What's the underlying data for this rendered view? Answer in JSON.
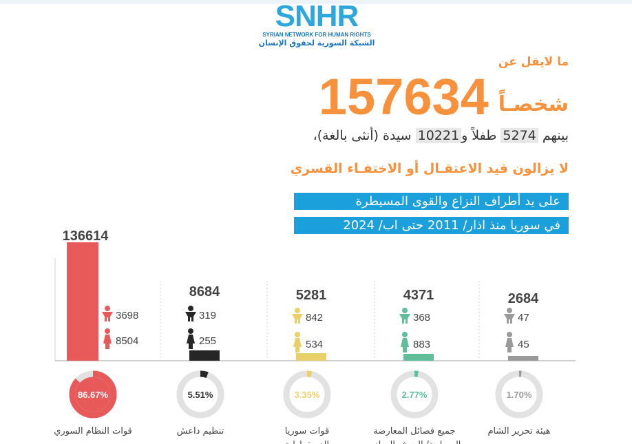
{
  "logo": {
    "main": "SNHR",
    "english": "SYRIAN NETWORK FOR HUMAN RIGHTS",
    "arabic": "الشبكة السورية لحقوق الإنسان"
  },
  "header": {
    "at_least": "ما لايقل عن",
    "total": "157634",
    "persons": "شخصـاً",
    "among_prefix": "بينهم",
    "children_value": "5274",
    "children_label": "طفلاً و",
    "women_value": "10221",
    "women_label": "سيدة (أنثى بالغة)،",
    "still_detained": "لا يزالون قيد الاعتقـال أو الاختفـاء القسري",
    "by_parties": "على يد أطراف النزاع والقوى المسيطرة",
    "in_syria": "في سوريا منذ اذار/ 2011 حتى اب/ 2024"
  },
  "colors": {
    "accent": "#f7913b",
    "band": "#1ba0dc",
    "syrian_regime": "#e8595a",
    "isis": "#262626",
    "sdf": "#ead06a",
    "opposition": "#5fbf9a",
    "hts": "#9a9a9a",
    "donut_track": "#e2e2e2"
  },
  "chart_data": {
    "type": "bar",
    "categories": [
      "قوات النظام السوري",
      "تنظيم داعش",
      "قوات سوريا الديمقراطية",
      "جميع فصائل المعارضة المسلحة/ الجيش الوطني",
      "هيئة تحرير الشام"
    ],
    "values": [
      136614,
      8684,
      5281,
      4371,
      2684
    ],
    "children": [
      3698,
      319,
      842,
      368,
      47
    ],
    "women": [
      8504,
      255,
      534,
      883,
      45
    ],
    "shares": [
      86.67,
      5.51,
      3.35,
      2.77,
      1.7
    ],
    "share_labels": [
      "86.67%",
      "5.51%",
      "3.35%",
      "2.77%",
      "1.70%"
    ],
    "value_labels": [
      "136614",
      "8684",
      "5281",
      "4371",
      "2684"
    ],
    "children_labels": [
      "3698",
      "319",
      "842",
      "368",
      "47"
    ],
    "women_labels": [
      "8504",
      "255",
      "534",
      "883",
      "45"
    ],
    "category_lines": [
      [
        "قوات النظام السوري"
      ],
      [
        "تنظيم داعش"
      ],
      [
        "قوات سوريا",
        "الديمقراطية"
      ],
      [
        "جميع فصائل المعارضة",
        "المسلحة/ الجيش الوطني"
      ],
      [
        "هيئة تحرير الشام"
      ]
    ],
    "series_colors": [
      "#e8595a",
      "#262626",
      "#ead06a",
      "#5fbf9a",
      "#9a9a9a"
    ],
    "icons": [
      "child-icon",
      "woman-icon"
    ]
  }
}
